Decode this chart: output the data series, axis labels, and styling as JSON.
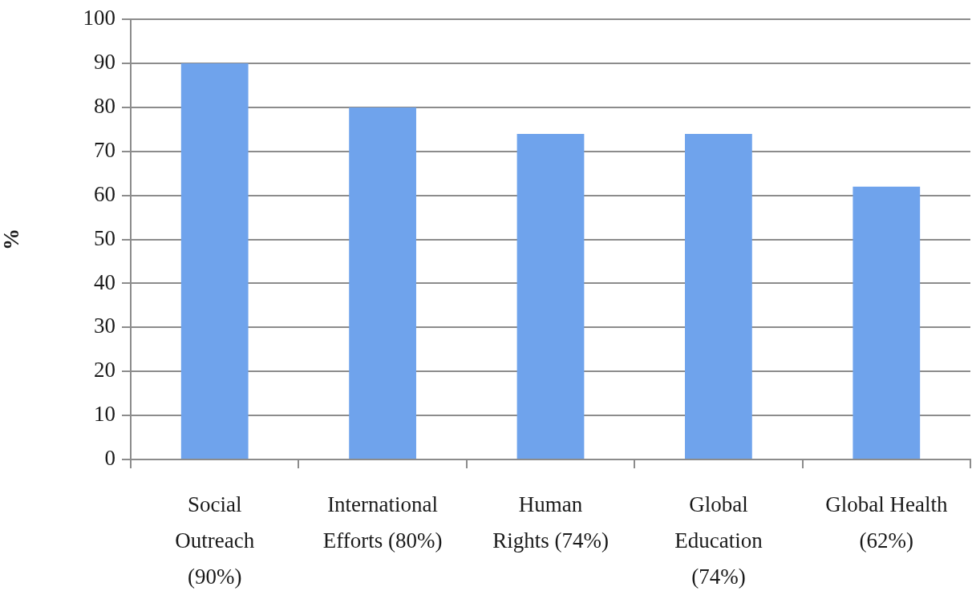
{
  "chart_data": {
    "type": "bar",
    "ylabel": "%",
    "categories": [
      "Social\nOutreach\n(90%)",
      "International\nEfforts (80%)",
      "Human\nRights (74%)",
      "Global\nEducation\n(74%)",
      "Global Health\n(62%)"
    ],
    "values": [
      90,
      80,
      74,
      74,
      62
    ],
    "color": "#6fa3ec",
    "ylim": [
      0,
      100
    ],
    "yticks": [
      0,
      10,
      20,
      30,
      40,
      50,
      60,
      70,
      80,
      90,
      100
    ],
    "grid": "y",
    "legend": false
  }
}
